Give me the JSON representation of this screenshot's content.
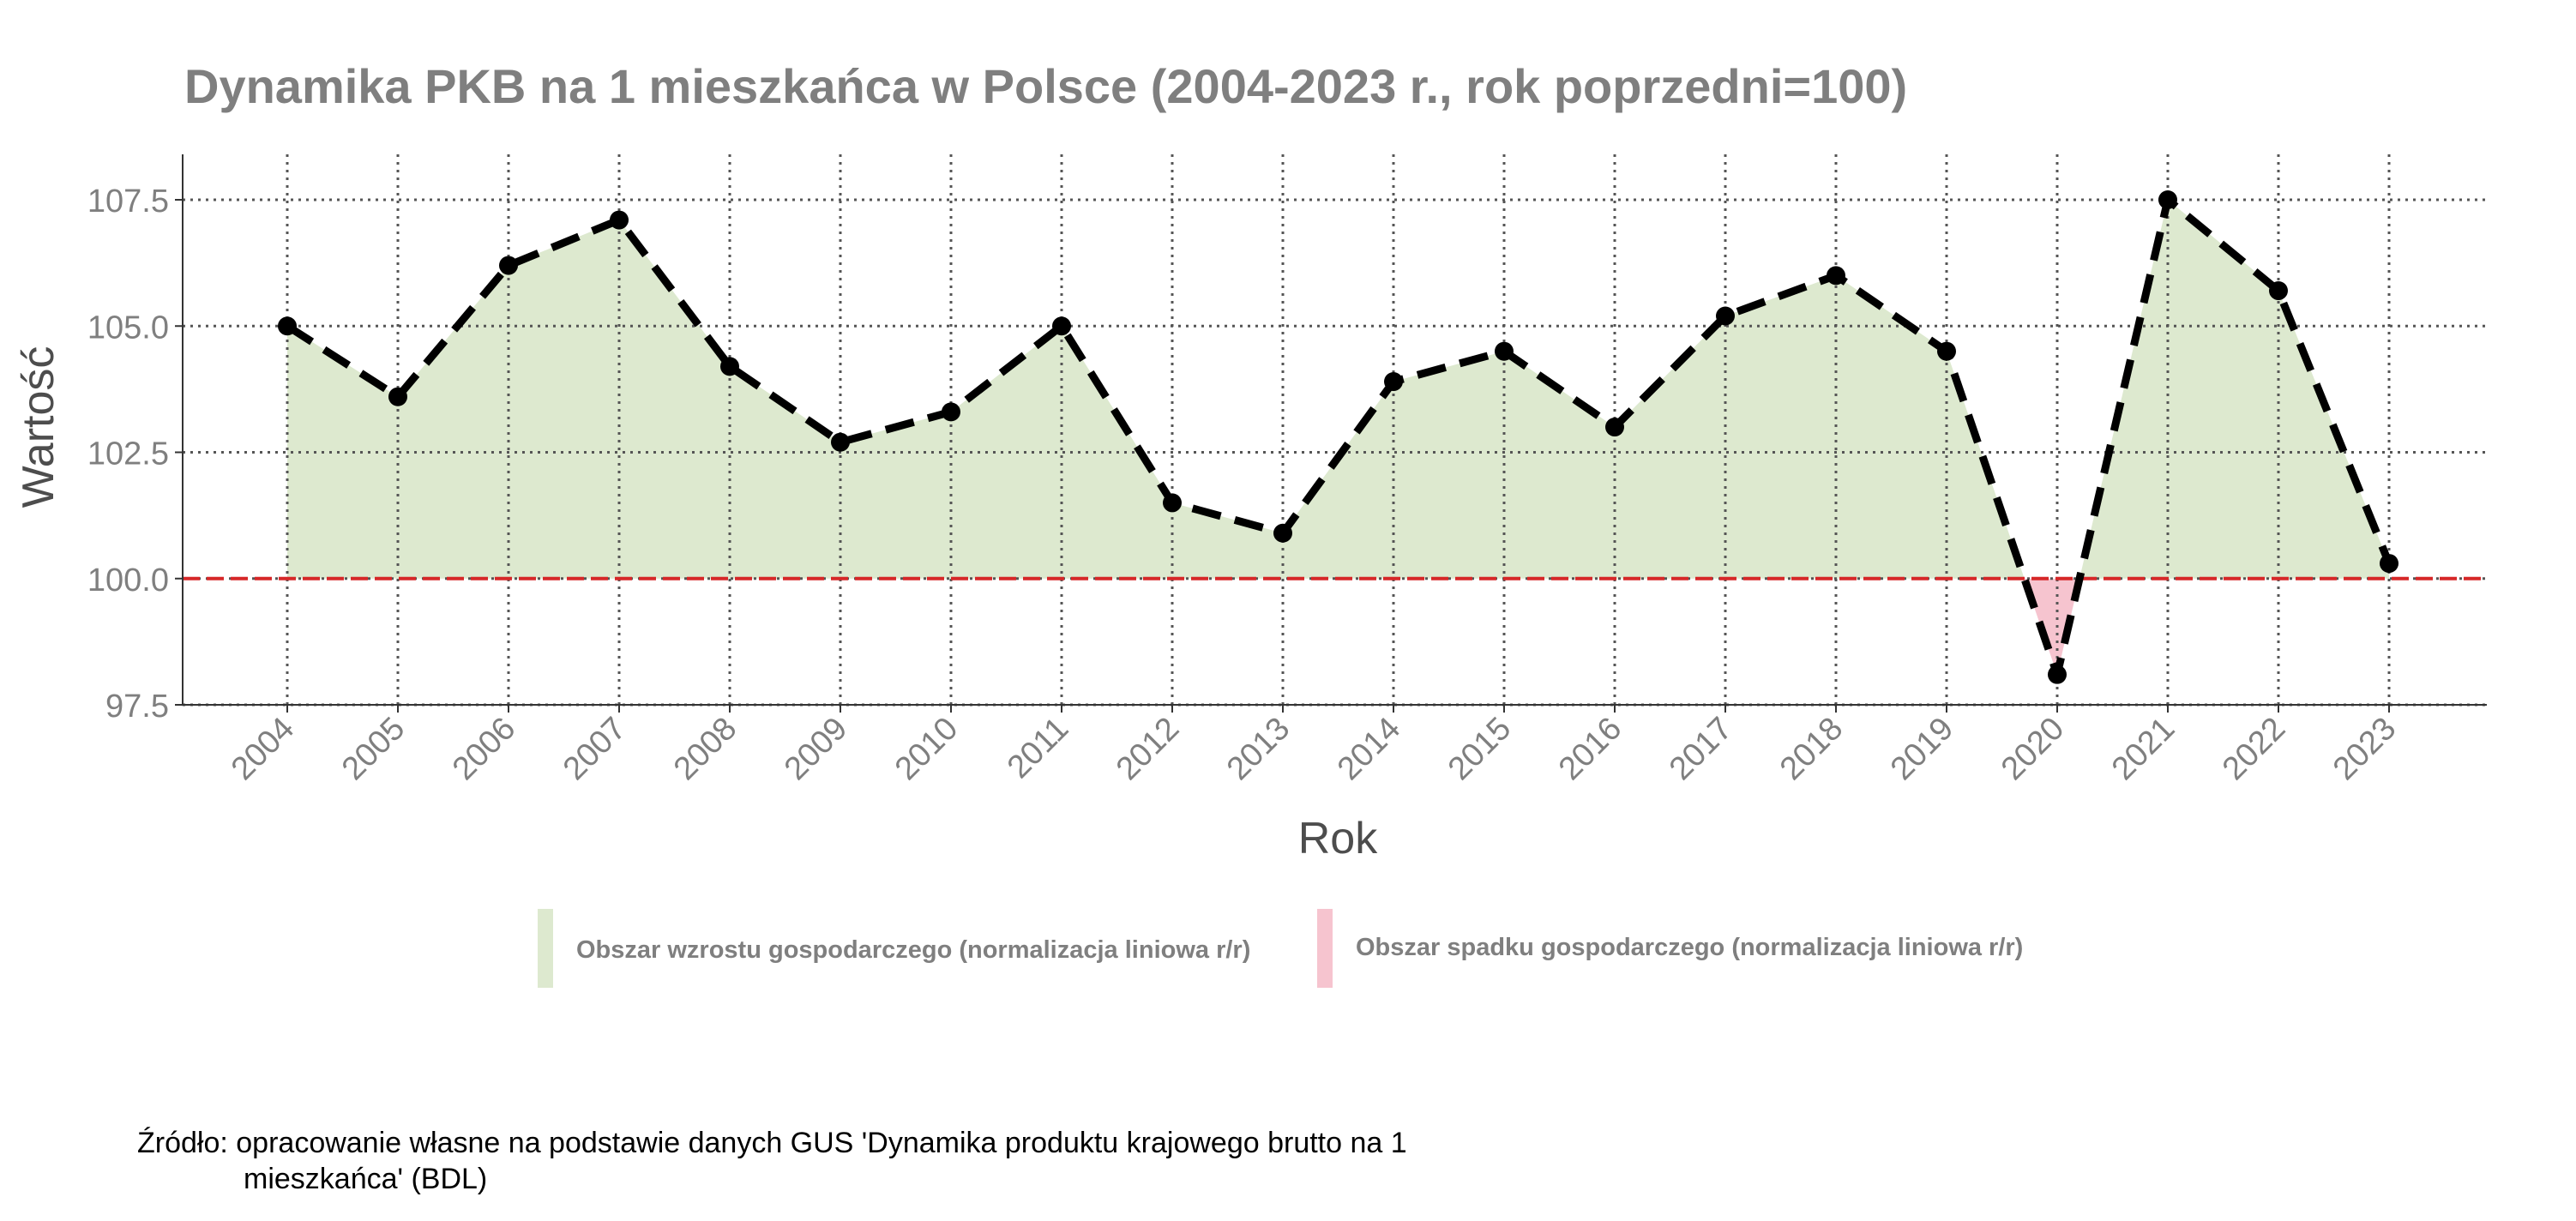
{
  "chart_data": {
    "type": "line",
    "title": "Dynamika PKB na 1 mieszkańca w Polsce (2004-2023 r., rok poprzedni=100)",
    "xlabel": "Rok",
    "ylabel": "Wartość",
    "ylim": [
      97.5,
      108.4
    ],
    "yticks": [
      97.5,
      100.0,
      102.5,
      105.0,
      107.5
    ],
    "ytick_labels": [
      "97.5",
      "100.0",
      "102.5",
      "105.0",
      "107.5"
    ],
    "reference_line": {
      "y": 100.0,
      "color": "#d62728",
      "style": "dashed"
    },
    "grid": true,
    "categories": [
      "2004",
      "2005",
      "2006",
      "2007",
      "2008",
      "2009",
      "2010",
      "2011",
      "2012",
      "2013",
      "2014",
      "2015",
      "2016",
      "2017",
      "2018",
      "2019",
      "2020",
      "2021",
      "2022",
      "2023"
    ],
    "series": [
      {
        "values": [
          105.0,
          103.6,
          106.2,
          107.1,
          104.2,
          102.7,
          103.3,
          105.0,
          101.5,
          100.9,
          103.9,
          104.5,
          103.0,
          105.2,
          106.0,
          104.5,
          98.1,
          107.5,
          105.7,
          100.3
        ],
        "color": "#000000",
        "line_style": "dashed",
        "markers": true
      }
    ],
    "fills": {
      "growth_color": "#dde9cf",
      "decline_color": "#f6c4cf"
    },
    "legend": {
      "position": "bottom",
      "items": [
        {
          "label": "Obszar wzrostu gospodarczego (normalizacja liniowa r/r)",
          "color": "#dde9cf"
        },
        {
          "label": "Obszar spadku gospodarczego (normalizacja liniowa r/r)",
          "color": "#f6c4cf"
        }
      ]
    },
    "caption": {
      "line1": "Źródło: opracowanie własne na podstawie danych GUS 'Dynamika produktu krajowego brutto na 1",
      "line2": "mieszkańca' (BDL)"
    }
  }
}
